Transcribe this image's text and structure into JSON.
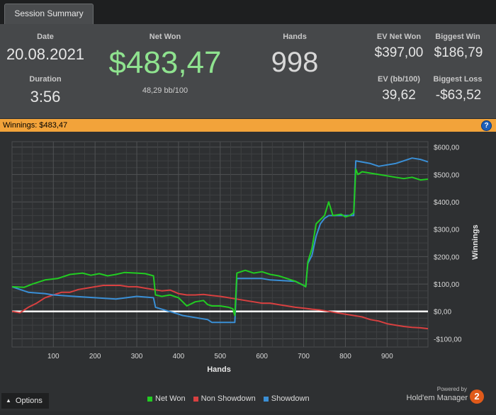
{
  "tab": {
    "label": "Session Summary"
  },
  "summary": {
    "date_label": "Date",
    "date_value": "20.08.2021",
    "duration_label": "Duration",
    "duration_value": "3:56",
    "net_won_label": "Net Won",
    "net_won_value": "$483,47",
    "net_won_sub": "48,29 bb/100",
    "hands_label": "Hands",
    "hands_value": "998",
    "ev_net_won_label": "EV Net Won",
    "ev_net_won_value": "$397,00",
    "biggest_win_label": "Biggest Win",
    "biggest_win_value": "$186,79",
    "ev_bb_label": "EV (bb/100)",
    "ev_bb_value": "39,62",
    "biggest_loss_label": "Biggest Loss",
    "biggest_loss_value": "-$63,52"
  },
  "banner": {
    "text": "Winnings: $483,47",
    "help_icon": "?"
  },
  "chart_data": {
    "type": "line",
    "xlabel": "Hands",
    "ylabel": "Winnings",
    "xlim": [
      1,
      998
    ],
    "ylim": [
      -130,
      620
    ],
    "x_ticks": [
      100,
      200,
      300,
      400,
      500,
      600,
      700,
      800,
      900
    ],
    "x_tick_labels": [
      "100",
      "200",
      "300",
      "400",
      "500",
      "600",
      "700",
      "800",
      "900"
    ],
    "y_ticks": [
      600,
      500,
      400,
      300,
      200,
      100,
      0,
      -100
    ],
    "y_tick_labels": [
      "$600,00",
      "$500,00",
      "$400,00",
      "$300,00",
      "$200,00",
      "$100,00",
      "$0,00",
      "-$100,00"
    ],
    "grid": true,
    "colors": {
      "net_won": "#22cc22",
      "non_showdown": "#d84040",
      "showdown": "#3a8fd6",
      "zero_line": "#ffffff"
    },
    "series": [
      {
        "name": "Net Won",
        "x": [
          1,
          30,
          50,
          80,
          110,
          140,
          170,
          190,
          210,
          230,
          250,
          270,
          300,
          320,
          340,
          345,
          360,
          380,
          400,
          410,
          420,
          440,
          460,
          470,
          480,
          500,
          520,
          530,
          535,
          540,
          560,
          580,
          600,
          620,
          640,
          660,
          680,
          700,
          705,
          710,
          720,
          730,
          750,
          760,
          770,
          790,
          800,
          810,
          820,
          825,
          830,
          840,
          860,
          880,
          900,
          920,
          940,
          960,
          980,
          998
        ],
        "y": [
          90,
          88,
          100,
          115,
          120,
          135,
          140,
          132,
          138,
          130,
          135,
          142,
          140,
          138,
          130,
          60,
          55,
          60,
          50,
          35,
          20,
          35,
          40,
          25,
          20,
          20,
          15,
          10,
          -15,
          140,
          150,
          140,
          145,
          135,
          130,
          120,
          110,
          95,
          90,
          180,
          230,
          320,
          350,
          400,
          350,
          355,
          345,
          350,
          360,
          520,
          500,
          510,
          505,
          500,
          495,
          490,
          485,
          490,
          480,
          483
        ]
      },
      {
        "name": "Non Showdown",
        "x": [
          1,
          20,
          40,
          60,
          80,
          100,
          120,
          140,
          160,
          180,
          200,
          220,
          240,
          260,
          280,
          300,
          320,
          340,
          360,
          380,
          400,
          420,
          440,
          460,
          480,
          500,
          520,
          540,
          560,
          580,
          600,
          620,
          640,
          660,
          680,
          700,
          720,
          740,
          760,
          780,
          800,
          820,
          840,
          860,
          880,
          900,
          920,
          940,
          960,
          980,
          998
        ],
        "y": [
          0,
          -5,
          15,
          30,
          50,
          60,
          70,
          70,
          80,
          85,
          90,
          95,
          95,
          95,
          90,
          90,
          85,
          80,
          75,
          78,
          65,
          60,
          60,
          62,
          58,
          55,
          50,
          45,
          40,
          35,
          30,
          30,
          25,
          20,
          15,
          12,
          8,
          5,
          0,
          -5,
          -10,
          -15,
          -20,
          -30,
          -35,
          -45,
          -50,
          -55,
          -58,
          -60,
          -63
        ]
      },
      {
        "name": "Showdown",
        "x": [
          1,
          40,
          80,
          100,
          150,
          200,
          250,
          300,
          340,
          345,
          400,
          410,
          470,
          480,
          530,
          535,
          540,
          600,
          620,
          680,
          700,
          705,
          710,
          720,
          730,
          740,
          750,
          760,
          800,
          820,
          825,
          860,
          880,
          920,
          940,
          960,
          980,
          998
        ],
        "y": [
          90,
          70,
          65,
          60,
          55,
          50,
          45,
          55,
          50,
          15,
          -10,
          -15,
          -30,
          -40,
          -40,
          -40,
          120,
          120,
          115,
          110,
          95,
          90,
          175,
          205,
          275,
          320,
          340,
          350,
          350,
          350,
          550,
          540,
          530,
          540,
          550,
          560,
          555,
          546
        ]
      }
    ]
  },
  "footer": {
    "options_label": "Options",
    "options_icon": "caret-up-icon",
    "powered_by": "Powered by",
    "brand": "Hold'em Manager",
    "brand_badge": "2"
  }
}
